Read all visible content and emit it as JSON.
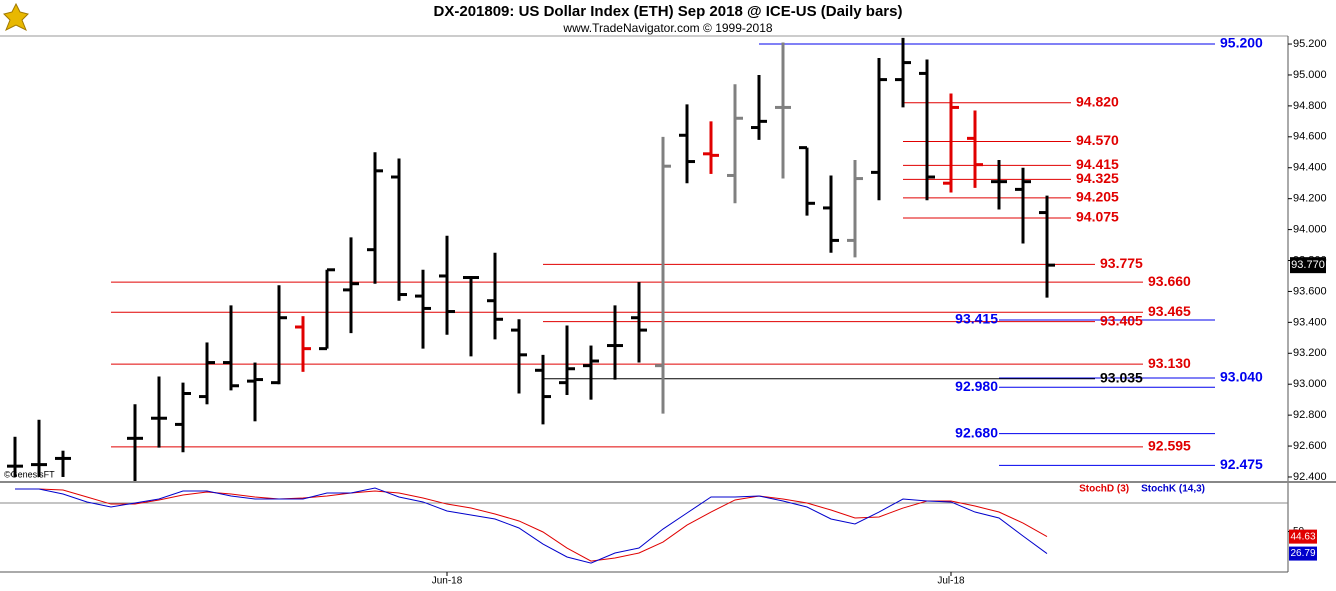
{
  "chart_data": [
    {
      "type": "ohlc",
      "title": "DX-201809:  US Dollar Index (ETH) Sep 2018 @ ICE-US  (Daily bars)",
      "subtitle": "www.TradeNavigator.com © 1999-2018",
      "watermark": "©GenesisFT",
      "categories": [
        null,
        null,
        null,
        null,
        null,
        null,
        null,
        null,
        null,
        null,
        null,
        null,
        null,
        null,
        null,
        null,
        null,
        null,
        "Jun-18",
        null,
        null,
        null,
        null,
        null,
        null,
        null,
        null,
        null,
        null,
        null,
        null,
        null,
        null,
        null,
        null,
        null,
        null,
        null,
        null,
        "Jul-18",
        null,
        null,
        null,
        null
      ],
      "open": [
        92.47,
        92.48,
        92.52,
        null,
        null,
        92.65,
        92.78,
        92.74,
        92.92,
        93.14,
        93.02,
        93.01,
        93.37,
        93.23,
        93.61,
        93.87,
        94.34,
        93.57,
        93.7,
        93.69,
        93.54,
        93.35,
        93.09,
        93.01,
        93.12,
        93.25,
        93.43,
        93.12,
        94.61,
        94.49,
        94.35,
        94.66,
        94.79,
        94.53,
        94.14,
        93.93,
        94.37,
        94.97,
        95.01,
        94.3,
        94.59,
        94.31,
        94.26,
        94.11
      ],
      "high": [
        92.66,
        92.77,
        92.57,
        null,
        null,
        92.87,
        93.05,
        93.01,
        93.27,
        93.51,
        93.14,
        93.64,
        93.44,
        93.74,
        93.95,
        94.5,
        94.46,
        93.74,
        93.96,
        93.7,
        93.85,
        93.42,
        93.19,
        93.38,
        93.25,
        93.51,
        93.66,
        94.6,
        94.81,
        94.7,
        94.94,
        95.0,
        95.21,
        94.53,
        94.35,
        94.45,
        95.11,
        95.24,
        95.1,
        94.88,
        94.77,
        94.45,
        94.4,
        94.22
      ],
      "low": [
        92.4,
        92.4,
        92.4,
        null,
        null,
        92.37,
        92.59,
        92.56,
        92.87,
        92.96,
        92.76,
        93.0,
        93.08,
        93.23,
        93.33,
        93.65,
        93.54,
        93.23,
        93.32,
        93.18,
        93.29,
        92.94,
        92.74,
        92.93,
        92.9,
        93.03,
        93.14,
        92.81,
        94.3,
        94.36,
        94.17,
        94.58,
        94.33,
        94.09,
        93.85,
        93.82,
        94.19,
        94.79,
        94.19,
        94.24,
        94.27,
        94.13,
        93.91,
        93.56
      ],
      "close": [
        92.47,
        92.48,
        92.52,
        null,
        null,
        92.65,
        92.78,
        92.94,
        93.14,
        92.99,
        93.03,
        93.43,
        93.23,
        93.74,
        93.65,
        94.38,
        93.58,
        93.49,
        93.47,
        93.69,
        93.42,
        93.19,
        92.92,
        93.1,
        93.15,
        93.25,
        93.35,
        94.41,
        94.44,
        94.48,
        94.72,
        94.7,
        94.79,
        94.17,
        93.93,
        94.33,
        94.97,
        95.08,
        94.34,
        94.79,
        94.42,
        94.31,
        94.31,
        93.77
      ],
      "bar_colors": [
        "#000000",
        "#000000",
        "#000000",
        null,
        null,
        "#000000",
        "#000000",
        "#000000",
        "#000000",
        "#000000",
        "#000000",
        "#000000",
        "#e00000",
        "#000000",
        "#000000",
        "#000000",
        "#000000",
        "#000000",
        "#000000",
        "#000000",
        "#000000",
        "#000000",
        "#000000",
        "#000000",
        "#000000",
        "#000000",
        "#000000",
        "#808080",
        "#000000",
        "#e00000",
        "#808080",
        "#000000",
        "#808080",
        "#000000",
        "#000000",
        "#808080",
        "#000000",
        "#000000",
        "#000000",
        "#e00000",
        "#e00000",
        "#000000",
        "#000000",
        "#000000"
      ],
      "last_label": "93.770",
      "ylim": [
        92.374,
        95.252
      ],
      "yticks": [
        {
          "value": 95.2,
          "label": "95.200"
        },
        {
          "value": 95.0,
          "label": "95.000"
        },
        {
          "value": 94.8,
          "label": "94.800"
        },
        {
          "value": 94.6,
          "label": "94.600"
        },
        {
          "value": 94.4,
          "label": "94.400"
        },
        {
          "value": 94.2,
          "label": "94.200"
        },
        {
          "value": 94.0,
          "label": "94.000"
        },
        {
          "value": 93.8,
          "label": "93.800"
        },
        {
          "value": 93.6,
          "label": "93.600"
        },
        {
          "value": 93.4,
          "label": "93.400"
        },
        {
          "value": 93.2,
          "label": "93.200"
        },
        {
          "value": 93.0,
          "label": "93.000"
        },
        {
          "value": 92.8,
          "label": "92.800"
        },
        {
          "value": 92.6,
          "label": "92.600"
        },
        {
          "value": 92.4,
          "label": "92.400"
        }
      ],
      "levels": [
        {
          "value": 95.2,
          "label": "95.200",
          "color": "#0000ee",
          "from": 31,
          "to": 50,
          "side": "right"
        },
        {
          "value": 94.82,
          "label": "94.820",
          "color": "#e00000",
          "from": 37,
          "to": 44,
          "side": "right"
        },
        {
          "value": 94.57,
          "label": "94.570",
          "color": "#e00000",
          "from": 37,
          "to": 44,
          "side": "right"
        },
        {
          "value": 94.415,
          "label": "94.415",
          "color": "#e00000",
          "from": 37,
          "to": 44,
          "side": "right"
        },
        {
          "value": 94.325,
          "label": "94.325",
          "color": "#e00000",
          "from": 37,
          "to": 44,
          "side": "right"
        },
        {
          "value": 94.205,
          "label": "94.205",
          "color": "#e00000",
          "from": 37,
          "to": 44,
          "side": "right"
        },
        {
          "value": 94.075,
          "label": "94.075",
          "color": "#e00000",
          "from": 37,
          "to": 44,
          "side": "right"
        },
        {
          "value": 93.775,
          "label": "93.775",
          "color": "#e00000",
          "from": 22,
          "to": 45,
          "side": "right"
        },
        {
          "value": 93.66,
          "label": "93.660",
          "color": "#e00000",
          "from": 4,
          "to": 47,
          "side": "right"
        },
        {
          "value": 93.465,
          "label": "93.465",
          "color": "#e00000",
          "from": 4,
          "to": 47,
          "side": "right"
        },
        {
          "value": 93.415,
          "label": "93.415",
          "color": "#0000ee",
          "from": 41,
          "to": 50,
          "side": "left"
        },
        {
          "value": 93.405,
          "label": "93.405",
          "color": "#e00000",
          "from": 22,
          "to": 45,
          "side": "right"
        },
        {
          "value": 93.13,
          "label": "93.130",
          "color": "#e00000",
          "from": 4,
          "to": 47,
          "side": "right"
        },
        {
          "value": 93.04,
          "label": "93.040",
          "color": "#0000ee",
          "from": 41,
          "to": 50,
          "side": "right"
        },
        {
          "value": 93.035,
          "label": "93.035",
          "color": "#000000",
          "from": 22,
          "to": 45,
          "side": "right"
        },
        {
          "value": 92.98,
          "label": "92.980",
          "color": "#0000ee",
          "from": 41,
          "to": 50,
          "side": "left"
        },
        {
          "value": 92.68,
          "label": "92.680",
          "color": "#0000ee",
          "from": 41,
          "to": 50,
          "side": "left"
        },
        {
          "value": 92.595,
          "label": "92.595",
          "color": "#e00000",
          "from": 4,
          "to": 47,
          "side": "right"
        },
        {
          "value": 92.475,
          "label": "92.475",
          "color": "#0000ee",
          "from": 41,
          "to": 50,
          "side": "right"
        }
      ]
    },
    {
      "type": "line",
      "series": [
        {
          "name": "StochD (3)",
          "color": "#e00000",
          "values": [
            94.7,
            94.7,
            93.7,
            86.3,
            78.9,
            78.9,
            83.2,
            88.4,
            91.6,
            89.5,
            86.3,
            84.2,
            85.3,
            87.4,
            90.5,
            92.6,
            90.5,
            85.3,
            78.9,
            74.7,
            68.4,
            61.1,
            49.5,
            32.6,
            18.9,
            22.1,
            27.4,
            38.9,
            56.8,
            70.5,
            83.2,
            87.4,
            84.2,
            80.0,
            72.6,
            64.2,
            65.3,
            74.7,
            82.1,
            82.1,
            76.8,
            70.5,
            58.9,
            44.63
          ]
        },
        {
          "name": "StochK (14,3)",
          "color": "#0000cc",
          "values": [
            94.7,
            94.7,
            89.5,
            81.1,
            75.8,
            80.0,
            84.2,
            92.6,
            92.6,
            87.4,
            84.2,
            84.2,
            84.2,
            90.5,
            90.5,
            95.8,
            86.3,
            81.1,
            71.6,
            67.4,
            63.2,
            53.7,
            36.8,
            23.2,
            16.8,
            27.4,
            32.6,
            52.6,
            69.5,
            86.3,
            86.3,
            87.4,
            82.1,
            75.8,
            63.2,
            57.9,
            70.5,
            84.2,
            82.1,
            81.1,
            70.5,
            64.2,
            45.3,
            26.79
          ]
        }
      ],
      "ylim": [
        7.4,
        100
      ],
      "yticks": [
        50
      ],
      "levels": [
        80
      ]
    }
  ]
}
